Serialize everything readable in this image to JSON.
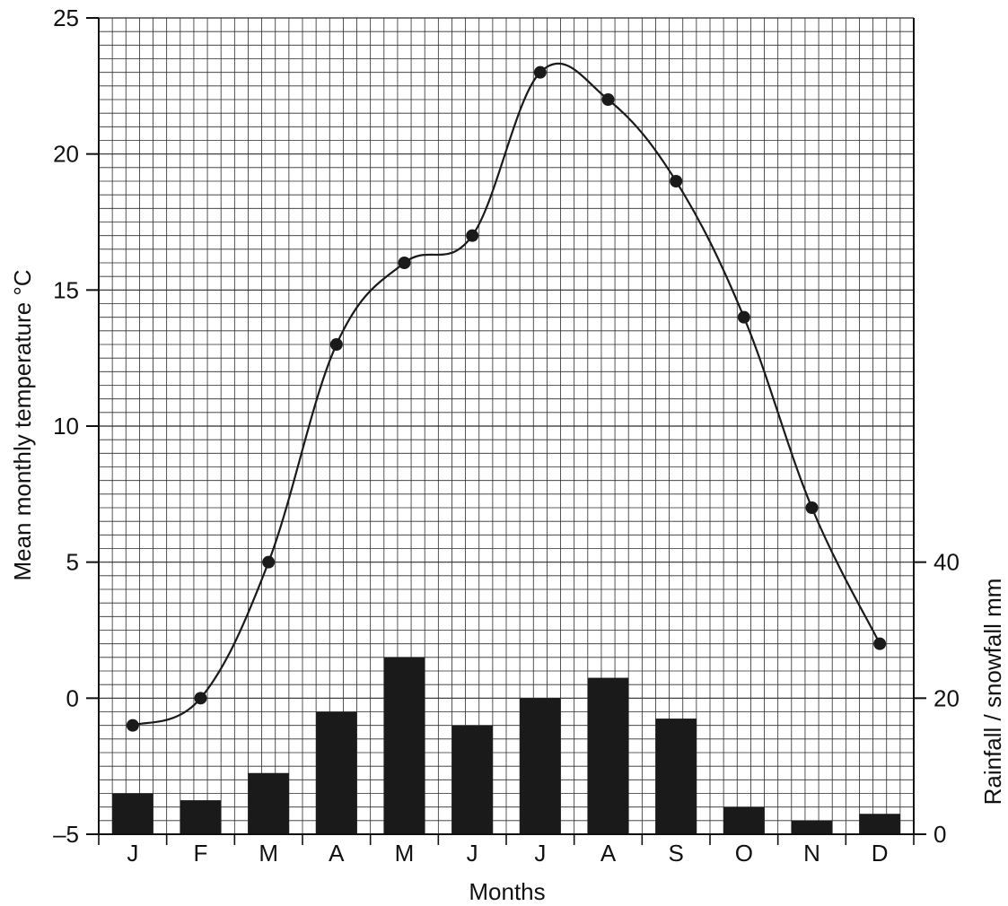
{
  "chart_data": {
    "type": "bar+line",
    "title": "",
    "categories": [
      "J",
      "F",
      "M",
      "A",
      "M",
      "J",
      "J",
      "A",
      "S",
      "O",
      "N",
      "D"
    ],
    "xlabel": "Months",
    "ylabel_left": "Mean monthly temperature °C",
    "ylabel_right": "Rainfall / snowfall  mm",
    "ylim_left": [
      -5,
      25
    ],
    "yticks_left": [
      "–5",
      "0",
      "5",
      "10",
      "15",
      "20",
      "25"
    ],
    "ylim_right": [
      0,
      40
    ],
    "yticks_right": [
      "0",
      "20",
      "40"
    ],
    "grid": true,
    "series": [
      {
        "type": "line",
        "axis": "left",
        "values": [
          -1,
          0,
          5,
          13,
          16,
          17,
          23,
          22,
          19,
          14,
          7,
          2
        ]
      },
      {
        "type": "bar",
        "axis": "right",
        "values": [
          6,
          5,
          9,
          18,
          26,
          16,
          20,
          23,
          17,
          4,
          2,
          3
        ]
      }
    ],
    "colors": {
      "bars": "#1a1a1a",
      "line": "#1a1a1a",
      "grid": "#2a2a2a"
    }
  }
}
